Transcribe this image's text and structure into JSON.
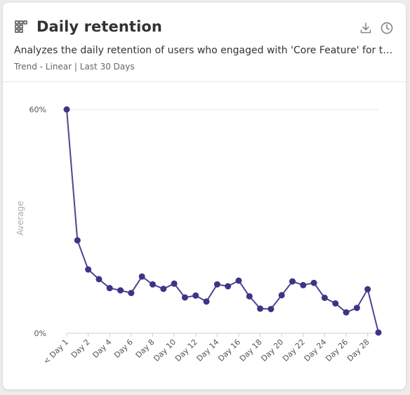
{
  "card": {
    "title": "Daily retention",
    "description": "Analyzes the daily retention of users who engaged with 'Core Feature' for the ...",
    "meta": "Trend - Linear | Last 30 Days",
    "icons": {
      "title": "grid-icon",
      "download": "download-icon",
      "history": "clock-icon"
    },
    "colors": {
      "series": "#3b3586",
      "line": "#4b4596",
      "grid": "#e5e5e5"
    }
  },
  "chart_data": {
    "type": "line",
    "ylabel": "Average",
    "y_ticks": [
      "60%",
      "0%"
    ],
    "ylim": [
      0,
      60
    ],
    "x_tick_labels": [
      "< Day 1",
      "Day 2",
      "Day 4",
      "Day 6",
      "Day 8",
      "Day 10",
      "Day 12",
      "Day 14",
      "Day 16",
      "Day 18",
      "Day 20",
      "Day 22",
      "Day 24",
      "Day 26",
      "Day 28"
    ],
    "x": [
      "< Day 1",
      "Day 1",
      "Day 2",
      "Day 3",
      "Day 4",
      "Day 5",
      "Day 6",
      "Day 7",
      "Day 8",
      "Day 9",
      "Day 10",
      "Day 11",
      "Day 12",
      "Day 13",
      "Day 14",
      "Day 15",
      "Day 16",
      "Day 17",
      "Day 18",
      "Day 19",
      "Day 20",
      "Day 21",
      "Day 22",
      "Day 23",
      "Day 24",
      "Day 25",
      "Day 26",
      "Day 27",
      "Day 28",
      "Day 29"
    ],
    "values": [
      60,
      24.9,
      17.1,
      14.5,
      12.1,
      11.5,
      10.8,
      15.2,
      13.1,
      11.9,
      13.3,
      9.6,
      10.1,
      8.5,
      13.1,
      12.6,
      14.1,
      9.9,
      6.6,
      6.5,
      10.2,
      13.9,
      12.9,
      13.5,
      9.5,
      8.0,
      5.6,
      6.8,
      11.8,
      0.2
    ],
    "grid": true,
    "legend": "none"
  }
}
